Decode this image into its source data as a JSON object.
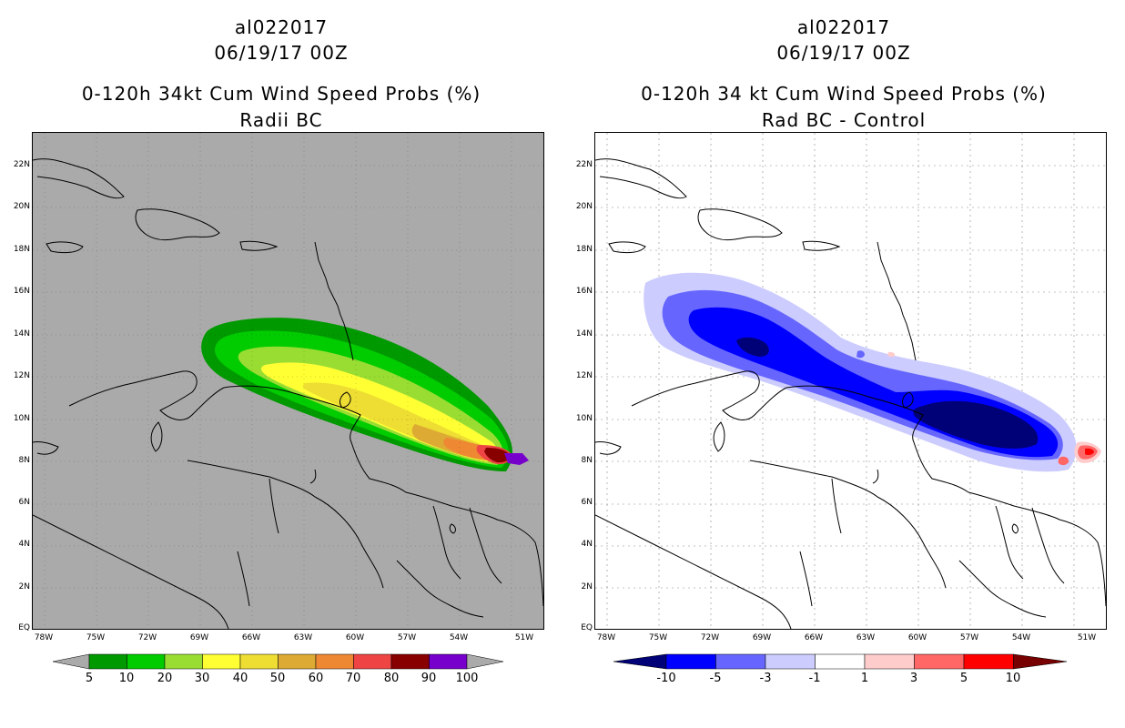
{
  "left_panel": {
    "title_line1": "al022017",
    "title_line2": "06/19/17 00Z",
    "title_line3": "0-120h 34kt Cum Wind Speed Probs (%)",
    "title_line4": "Radii BC",
    "background_color": "#aaaaaa",
    "colorbar": {
      "labels": [
        "5",
        "10",
        "20",
        "30",
        "40",
        "50",
        "60",
        "70",
        "80",
        "90",
        "100"
      ],
      "colors": [
        "#009900",
        "#00cc00",
        "#99dd33",
        "#ffff33",
        "#eedd33",
        "#ddaa33",
        "#ee8833",
        "#ee4444",
        "#880000",
        "#7700cc"
      ]
    }
  },
  "right_panel": {
    "title_line1": "al022017",
    "title_line2": "06/19/17 00Z",
    "title_line3": "0-120h 34 kt Cum Wind Speed Probs (%)",
    "title_line4": "Rad BC - Control",
    "background_color": "#ffffff",
    "colorbar": {
      "labels": [
        "-10",
        "-5",
        "-3",
        "-1",
        "1",
        "3",
        "5",
        "10"
      ],
      "colors": [
        "#000077",
        "#0000ff",
        "#6666ff",
        "#ccccff",
        "#ffffff",
        "#ffcccc",
        "#ff6666",
        "#ff0000",
        "#770000"
      ]
    }
  },
  "axes": {
    "lat_labels": [
      "22N",
      "20N",
      "18N",
      "16N",
      "14N",
      "12N",
      "10N",
      "8N",
      "6N",
      "4N",
      "2N",
      "EQ"
    ],
    "lon_labels": [
      "78W",
      "75W",
      "72W",
      "69W",
      "66W",
      "63W",
      "60W",
      "57W",
      "54W",
      "51W"
    ]
  }
}
